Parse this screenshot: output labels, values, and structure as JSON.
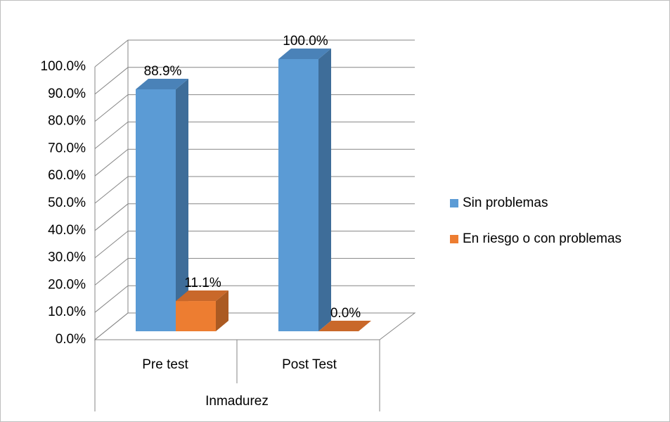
{
  "chart_data": {
    "type": "bar3d",
    "categories": [
      "Pre test",
      "Post Test"
    ],
    "group_label": "Inmadurez",
    "series": [
      {
        "name": "Sin problemas",
        "color": "#5b9bd5",
        "side_color": "#3e6d99",
        "top_color": "#4a82b8",
        "values": [
          88.9,
          100
        ],
        "value_labels": [
          "88.9%",
          "100.0%"
        ]
      },
      {
        "name": "En riesgo o con problemas",
        "color": "#ed7d31",
        "side_color": "#ab5a22",
        "top_color": "#c9682a",
        "values": [
          11.1,
          0
        ],
        "value_labels": [
          "11.1%",
          "0.0%"
        ]
      }
    ],
    "ylim": [
      0,
      100
    ],
    "yticks": [
      {
        "value": 0,
        "label": "0.0%"
      },
      {
        "value": 10,
        "label": "10.0%"
      },
      {
        "value": 20,
        "label": "20.0%"
      },
      {
        "value": 30,
        "label": "30.0%"
      },
      {
        "value": 40,
        "label": "40.0%"
      },
      {
        "value": 50,
        "label": "50.0%"
      },
      {
        "value": 60,
        "label": "60.0%"
      },
      {
        "value": 70,
        "label": "70.0%"
      },
      {
        "value": 80,
        "label": "80.0%"
      },
      {
        "value": 90,
        "label": "90.0%"
      },
      {
        "value": 100,
        "label": "100.0%"
      }
    ],
    "grid": true,
    "legend": "right"
  }
}
